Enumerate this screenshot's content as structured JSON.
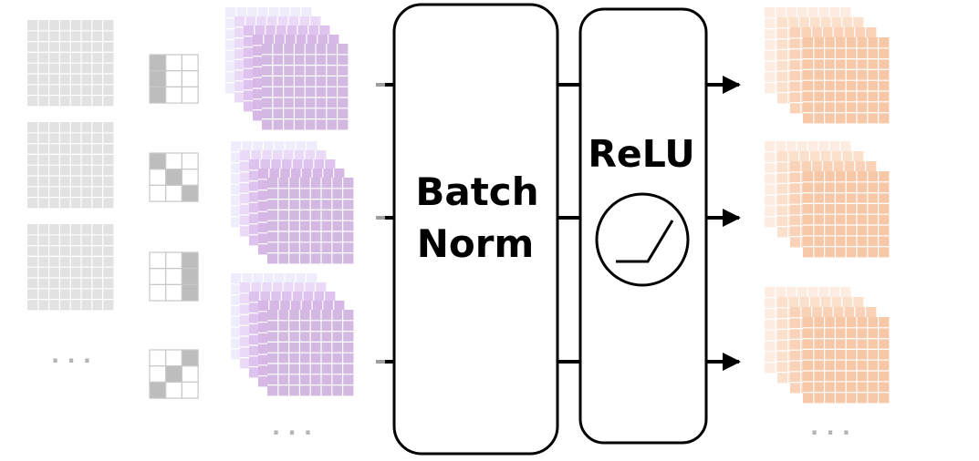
{
  "batchnorm": {
    "line1": "Batch",
    "line2": "Norm"
  },
  "relu": {
    "label": "ReLU",
    "icon": "relu-curve-icon"
  },
  "ellipsis": "· · ·",
  "colors": {
    "input_grid": "#e2e2e2",
    "kernel_fill": "#bdbdbd",
    "kernel_border": "#c8c8c8",
    "feature_gradient": [
      "#efecfb",
      "#eadaf7",
      "#dfc3ef",
      "#d6b7e6",
      "#d3b8e2"
    ],
    "output_gradient": [
      "#fcece2",
      "#fbe0cc",
      "#f9d2b8",
      "#f7c8a8"
    ],
    "stroke": "#000000",
    "connector_gray": "#9e9e9e"
  },
  "kernels": [
    {
      "name": "kernel-left-column",
      "filled": [
        0,
        3,
        6
      ]
    },
    {
      "name": "kernel-diagonal",
      "filled": [
        0,
        4,
        8
      ]
    },
    {
      "name": "kernel-right-column",
      "filled": [
        2,
        5,
        8
      ]
    },
    {
      "name": "kernel-antidiagonal",
      "filled": [
        2,
        4,
        6
      ]
    }
  ]
}
